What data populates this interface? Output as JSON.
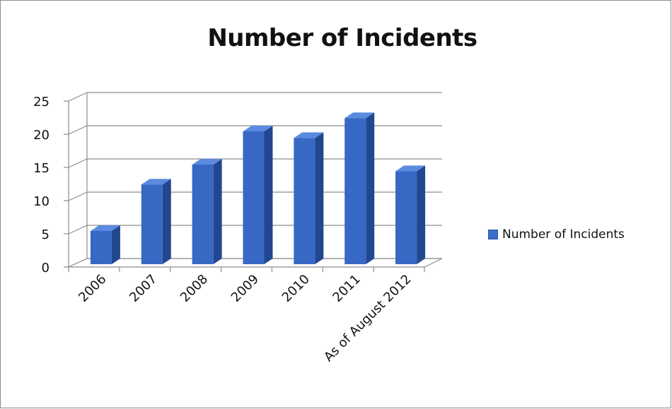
{
  "chart_data": {
    "type": "bar",
    "title": "Number of Incidents",
    "categories": [
      "2006",
      "2007",
      "2008",
      "2009",
      "2010",
      "2011",
      "As of August 2012"
    ],
    "series": [
      {
        "name": "Number of Incidents",
        "values": [
          5,
          12,
          15,
          20,
          19,
          22,
          14
        ],
        "color": "#3a6fcc"
      }
    ],
    "ylim": [
      0,
      25
    ],
    "yticks": [
      "0",
      "5",
      "10",
      "15",
      "20",
      "25"
    ],
    "grid": true,
    "legend_position": "right",
    "style": "3d"
  }
}
